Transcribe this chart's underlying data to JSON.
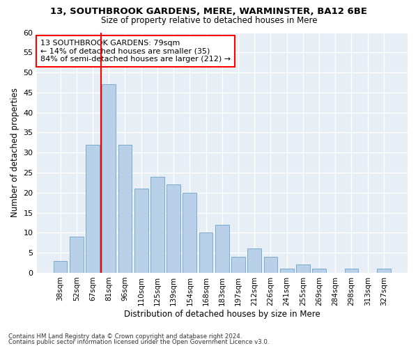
{
  "title1": "13, SOUTHBROOK GARDENS, MERE, WARMINSTER, BA12 6BE",
  "title2": "Size of property relative to detached houses in Mere",
  "xlabel": "Distribution of detached houses by size in Mere",
  "ylabel": "Number of detached properties",
  "categories": [
    "38sqm",
    "52sqm",
    "67sqm",
    "81sqm",
    "96sqm",
    "110sqm",
    "125sqm",
    "139sqm",
    "154sqm",
    "168sqm",
    "183sqm",
    "197sqm",
    "212sqm",
    "226sqm",
    "241sqm",
    "255sqm",
    "269sqm",
    "284sqm",
    "298sqm",
    "313sqm",
    "327sqm"
  ],
  "values": [
    3,
    9,
    32,
    47,
    32,
    21,
    24,
    22,
    20,
    10,
    12,
    4,
    6,
    4,
    1,
    2,
    1,
    0,
    1,
    0,
    1
  ],
  "bar_color": "#b8d0e8",
  "bar_edge_color": "#7aaad0",
  "vline_color": "red",
  "annotation_text": "13 SOUTHBROOK GARDENS: 79sqm\n← 14% of detached houses are smaller (35)\n84% of semi-detached houses are larger (212) →",
  "annotation_box_color": "white",
  "annotation_box_edge_color": "red",
  "ylim": [
    0,
    60
  ],
  "yticks": [
    0,
    5,
    10,
    15,
    20,
    25,
    30,
    35,
    40,
    45,
    50,
    55,
    60
  ],
  "footer1": "Contains HM Land Registry data © Crown copyright and database right 2024.",
  "footer2": "Contains public sector information licensed under the Open Government Licence v3.0.",
  "bg_color": "#ffffff",
  "plot_bg_color": "#e8eef5"
}
